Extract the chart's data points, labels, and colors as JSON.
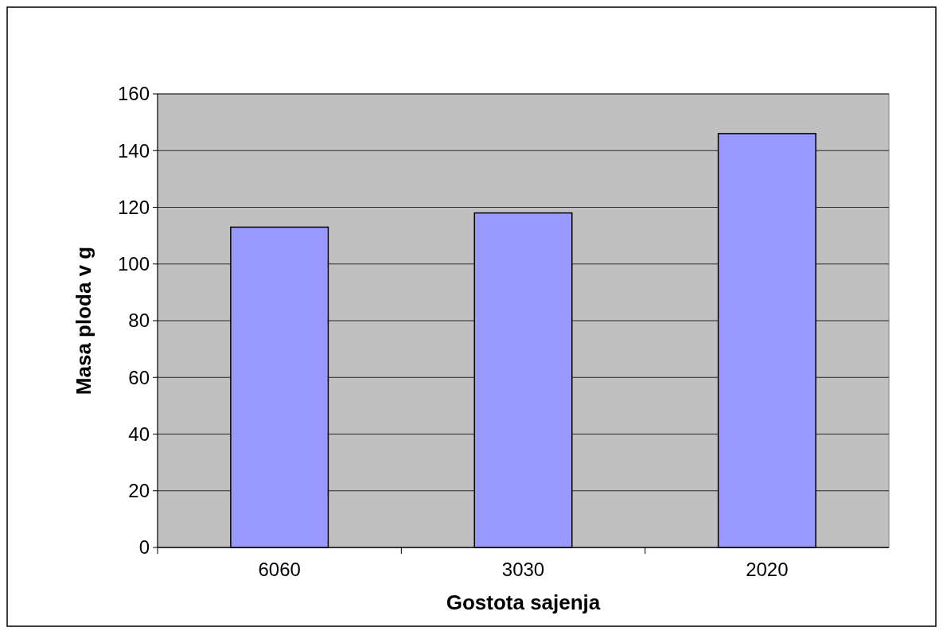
{
  "chart_data": {
    "type": "bar",
    "xlabel": "Gostota sajenja",
    "ylabel": "Masa ploda v g",
    "categories": [
      "6060",
      "3030",
      "2020"
    ],
    "values": [
      113,
      118,
      146
    ],
    "color": "#9999ff",
    "ylim": [
      0,
      160
    ],
    "yticks": [
      0,
      20,
      40,
      60,
      80,
      100,
      120,
      140,
      160
    ],
    "grid": "y"
  }
}
